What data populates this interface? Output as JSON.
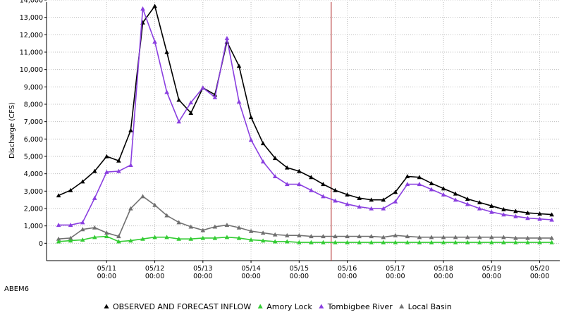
{
  "chart_data": {
    "type": "line",
    "station_label": "ABEM6",
    "ylabel": "Discharge (CFS)",
    "xlabel": "",
    "ylim": [
      -1000,
      14000
    ],
    "yticks": [
      0,
      1000,
      2000,
      3000,
      4000,
      5000,
      6000,
      7000,
      8000,
      9000,
      10000,
      11000,
      12000,
      13000,
      14000
    ],
    "ytick_labels": [
      "0",
      "1,000",
      "2,000",
      "3,000",
      "4,000",
      "5,000",
      "6,000",
      "7,000",
      "8,000",
      "9,000",
      "10,000",
      "11,000",
      "12,000",
      "13,000",
      "14,000"
    ],
    "xlim": [
      0,
      240
    ],
    "xticks": [
      {
        "x": 24,
        "date": "05/11",
        "time": "00:00"
      },
      {
        "x": 48,
        "date": "05/12",
        "time": "00:00"
      },
      {
        "x": 72,
        "date": "05/13",
        "time": "00:00"
      },
      {
        "x": 96,
        "date": "05/14",
        "time": "00:00"
      },
      {
        "x": 120,
        "date": "05/15",
        "time": "00:00"
      },
      {
        "x": 144,
        "date": "05/16",
        "time": "00:00"
      },
      {
        "x": 168,
        "date": "05/17",
        "time": "00:00"
      },
      {
        "x": 192,
        "date": "05/18",
        "time": "00:00"
      },
      {
        "x": 216,
        "date": "05/19",
        "time": "00:00"
      },
      {
        "x": 240,
        "date": "05/20",
        "time": "00:00"
      }
    ],
    "x_hours": [
      0,
      6,
      12,
      18,
      24,
      30,
      36,
      42,
      48,
      54,
      60,
      66,
      72,
      78,
      84,
      90,
      96,
      102,
      108,
      114,
      120,
      126,
      132,
      138,
      144,
      150,
      156,
      162,
      168,
      174,
      180,
      186,
      192,
      198,
      204,
      210,
      216,
      222,
      228,
      234,
      240,
      246
    ],
    "forecast_marker_x": 136,
    "grid": true,
    "legend_position": "bottom",
    "series": [
      {
        "name": "OBSERVED AND FORECAST INFLOW",
        "color": "#000000",
        "values": [
          2750,
          3050,
          3550,
          4150,
          5000,
          4750,
          6500,
          12700,
          13650,
          11000,
          8250,
          7500,
          8950,
          8550,
          11600,
          10200,
          7250,
          5750,
          4900,
          4350,
          4150,
          3800,
          3400,
          3050,
          2800,
          2600,
          2500,
          2500,
          2950,
          3850,
          3800,
          3450,
          3150,
          2850,
          2550,
          2350,
          2150,
          1950,
          1850,
          1750,
          1700,
          1650
        ]
      },
      {
        "name": "Amory Lock",
        "color": "#33cc33",
        "values": [
          100,
          150,
          200,
          350,
          400,
          100,
          150,
          250,
          350,
          350,
          250,
          250,
          300,
          300,
          350,
          300,
          200,
          150,
          100,
          100,
          50,
          50,
          50,
          50,
          50,
          50,
          50,
          50,
          50,
          50,
          50,
          50,
          50,
          50,
          50,
          50,
          50,
          50,
          50,
          50,
          50,
          50
        ]
      },
      {
        "name": "Tombigbee River",
        "color": "#8a3fe0",
        "values": [
          1050,
          1050,
          1200,
          2600,
          4100,
          4150,
          4500,
          13500,
          11600,
          8700,
          7000,
          8100,
          8950,
          8400,
          11800,
          8150,
          5950,
          4700,
          3850,
          3400,
          3400,
          3050,
          2700,
          2450,
          2250,
          2100,
          2000,
          2000,
          2400,
          3400,
          3400,
          3100,
          2800,
          2500,
          2250,
          2000,
          1800,
          1650,
          1550,
          1450,
          1400,
          1350
        ]
      },
      {
        "name": "Local Basin",
        "color": "#707070",
        "values": [
          250,
          300,
          800,
          900,
          600,
          400,
          2000,
          2700,
          2200,
          1600,
          1200,
          950,
          750,
          950,
          1050,
          900,
          700,
          600,
          500,
          450,
          450,
          400,
          400,
          400,
          400,
          400,
          400,
          350,
          450,
          400,
          350,
          350,
          350,
          350,
          350,
          350,
          350,
          350,
          300,
          300,
          300,
          300
        ]
      }
    ]
  }
}
